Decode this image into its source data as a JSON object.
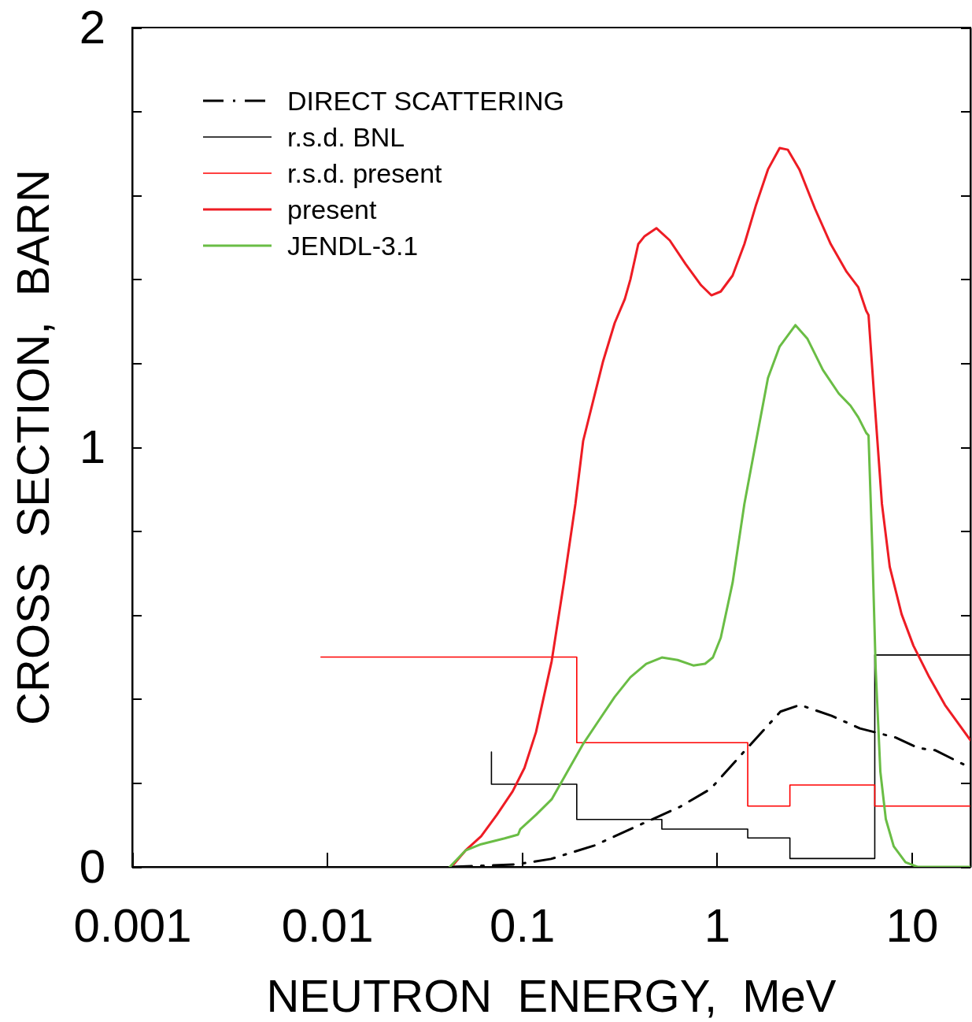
{
  "chart_data": {
    "type": "line",
    "xlabel": "NEUTRON  ENERGY,  MeV",
    "ylabel": "CROSS  SECTION,  BARN",
    "log": "x",
    "xlim": [
      0.001,
      20
    ],
    "ylim": [
      0,
      2
    ],
    "xticks": [
      0.001,
      0.01,
      0.1,
      1,
      10
    ],
    "yticks": [
      0,
      {
        "value": 0.2,
        "label": null
      },
      {
        "value": 0.4,
        "label": null
      },
      {
        "value": 0.6,
        "label": null
      },
      {
        "value": 0.8,
        "label": null
      },
      1,
      {
        "value": 1.2,
        "label": null
      },
      {
        "value": 1.4,
        "label": null
      },
      {
        "value": 1.6,
        "label": null
      },
      {
        "value": 1.8,
        "label": null
      },
      2
    ],
    "grid": false,
    "legend": "top left",
    "marker": "none",
    "series": [
      {
        "name": "DIRECT SCATTERING",
        "type": "line",
        "line_style": "dashed",
        "color": "#000000",
        "x": [
          0.0434,
          0.0937,
          0.141,
          0.235,
          0.434,
          0.646,
          0.929,
          1.4,
          2.12,
          2.67,
          3.88,
          5.42,
          8.3,
          10.8,
          13.2,
          20
        ],
        "values": [
          0,
          0.006,
          0.019,
          0.051,
          0.107,
          0.143,
          0.186,
          0.278,
          0.37,
          0.386,
          0.36,
          0.33,
          0.308,
          0.283,
          0.278,
          0.236
        ]
      },
      {
        "name": "r.s.d. BNL",
        "type": "step",
        "line_style": "solid",
        "color": "#000000",
        "x": [
          0.0697,
          0.0697,
          0.191,
          0.522,
          1.44,
          2.37,
          6.46,
          20
        ],
        "values": [
          0.274,
          0.197,
          0.113,
          0.09,
          0.069,
          0.02,
          0.505,
          0.505
        ]
      },
      {
        "name": "r.s.d. present",
        "type": "step",
        "line_style": "solid",
        "color": "#ff0000",
        "x": [
          0.0093,
          0.191,
          1.44,
          2.37,
          6.46,
          20
        ],
        "values": [
          0.5,
          0.296,
          0.145,
          0.195,
          0.145,
          0.145
        ]
      },
      {
        "name": "present",
        "type": "line",
        "line_style": "solid",
        "color": "#ee1c24",
        "x": [
          0.0446,
          0.0513,
          0.0617,
          0.0743,
          0.0895,
          0.103,
          0.118,
          0.142,
          0.164,
          0.188,
          0.206,
          0.226,
          0.26,
          0.299,
          0.337,
          0.36,
          0.395,
          0.426,
          0.49,
          0.573,
          0.69,
          0.83,
          0.937,
          1.047,
          1.204,
          1.384,
          1.59,
          1.829,
          2.1,
          2.31,
          2.65,
          3.19,
          3.84,
          4.63,
          5.32,
          5.84,
          6.0,
          6.4,
          7.03,
          7.71,
          8.87,
          10.2,
          12.3,
          14.8,
          20
        ],
        "values": [
          0.006,
          0.039,
          0.073,
          0.124,
          0.18,
          0.236,
          0.321,
          0.49,
          0.677,
          0.865,
          1.015,
          1.09,
          1.203,
          1.296,
          1.353,
          1.4,
          1.484,
          1.503,
          1.522,
          1.493,
          1.437,
          1.386,
          1.362,
          1.371,
          1.409,
          1.484,
          1.578,
          1.662,
          1.713,
          1.709,
          1.662,
          1.568,
          1.484,
          1.418,
          1.381,
          1.325,
          1.315,
          1.128,
          0.865,
          0.715,
          0.602,
          0.527,
          0.452,
          0.386,
          0.302
        ]
      },
      {
        "name": "JENDL-3.1",
        "type": "line",
        "line_style": "solid",
        "color": "#6abd45",
        "x": [
          0.0426,
          0.0513,
          0.0617,
          0.0815,
          0.0955,
          0.098,
          0.118,
          0.142,
          0.171,
          0.206,
          0.248,
          0.299,
          0.36,
          0.434,
          0.522,
          0.629,
          0.757,
          0.87,
          0.954,
          1.047,
          1.204,
          1.384,
          1.59,
          1.829,
          2.1,
          2.53,
          2.91,
          3.5,
          4.22,
          4.85,
          5.32,
          5.84,
          6.0,
          6.28,
          6.53,
          6.9,
          7.36,
          8.08,
          9.29,
          10.7,
          20
        ],
        "values": [
          0,
          0.039,
          0.054,
          0.068,
          0.077,
          0.09,
          0.124,
          0.161,
          0.227,
          0.293,
          0.349,
          0.405,
          0.452,
          0.484,
          0.499,
          0.493,
          0.48,
          0.484,
          0.499,
          0.546,
          0.677,
          0.865,
          1.015,
          1.165,
          1.24,
          1.291,
          1.259,
          1.184,
          1.128,
          1.099,
          1.071,
          1.034,
          1.028,
          0.752,
          0.471,
          0.227,
          0.114,
          0.049,
          0.011,
          0,
          0
        ]
      }
    ]
  }
}
